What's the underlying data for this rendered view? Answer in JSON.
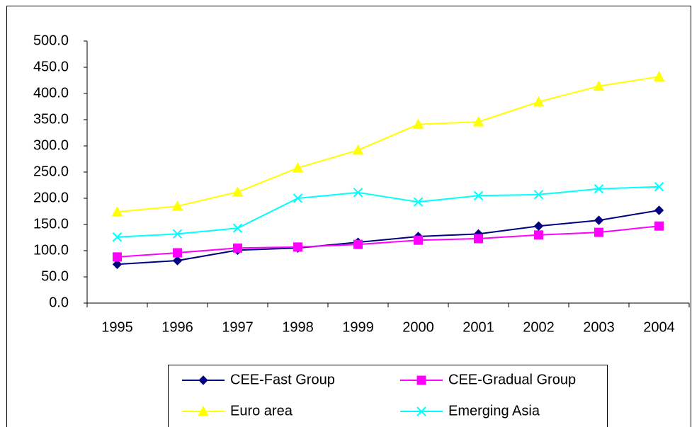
{
  "chart_data": {
    "type": "line",
    "categories": [
      "1995",
      "1996",
      "1997",
      "1998",
      "1999",
      "2000",
      "2001",
      "2002",
      "2003",
      "2004"
    ],
    "series": [
      {
        "name": "CEE-Fast Group",
        "color": "#000080",
        "marker": "diamond",
        "values": [
          74,
          81,
          101,
          105,
          116,
          127,
          132,
          147,
          158,
          177
        ]
      },
      {
        "name": "CEE-Gradual Group",
        "color": "#FF00FF",
        "marker": "square",
        "values": [
          88,
          96,
          105,
          107,
          112,
          120,
          123,
          130,
          135,
          147
        ]
      },
      {
        "name": "Euro area",
        "color": "#FFFF00",
        "marker": "triangle",
        "values": [
          174,
          185,
          212,
          258,
          292,
          341,
          346,
          384,
          414,
          432
        ]
      },
      {
        "name": "Emerging Asia",
        "color": "#00FFFF",
        "marker": "x",
        "values": [
          126,
          132,
          143,
          200,
          211,
          193,
          205,
          207,
          218,
          222
        ]
      }
    ],
    "ylim": [
      0,
      500
    ],
    "yticks": [
      {
        "value": 0,
        "label": "0.0"
      },
      {
        "value": 50,
        "label": "50.0"
      },
      {
        "value": 100,
        "label": "100.0"
      },
      {
        "value": 150,
        "label": "150.0"
      },
      {
        "value": 200,
        "label": "200.0"
      },
      {
        "value": 250,
        "label": "250.0"
      },
      {
        "value": 300,
        "label": "300.0"
      },
      {
        "value": 350,
        "label": "350.0"
      },
      {
        "value": 400,
        "label": "400.0"
      },
      {
        "value": 450,
        "label": "450.0"
      },
      {
        "value": 500,
        "label": "500.0"
      }
    ],
    "grid": false,
    "legend": "bottom"
  }
}
